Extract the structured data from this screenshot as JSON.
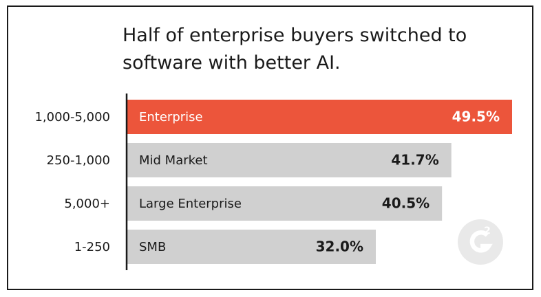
{
  "title": {
    "line1": "Half of enterprise buyers switched to",
    "line2": "software with better AI."
  },
  "colors": {
    "highlight_bar": "#ec553b",
    "default_bar": "#d0d0d0",
    "highlight_text": "#ffffff",
    "default_text": "#1a1a1a",
    "axis": "#1a1a1a",
    "watermark": "#e9e9e9"
  },
  "watermark_icon": "g2-logo-icon",
  "chart_data": {
    "type": "bar",
    "orientation": "horizontal",
    "title": "Half of enterprise buyers switched to software with better AI.",
    "categories": [
      "1,000-5,000",
      "250-1,000",
      "5,000+",
      "1-250"
    ],
    "segments": [
      "Enterprise",
      "Mid Market",
      "Large Enterprise",
      "SMB"
    ],
    "values": [
      49.5,
      41.7,
      40.5,
      32.0
    ],
    "value_labels": [
      "49.5%",
      "41.7%",
      "40.5%",
      "32.0%"
    ],
    "highlight_index": 0,
    "xlim": [
      0,
      49.5
    ],
    "grid": false,
    "legend": "none"
  }
}
